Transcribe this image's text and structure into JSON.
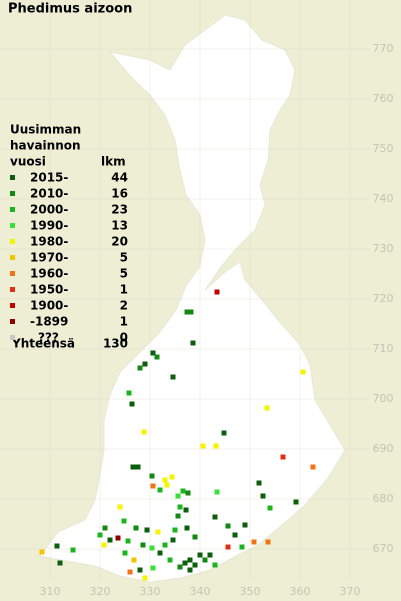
{
  "title": "Phedimus aizoon",
  "legend": {
    "heading": [
      "Uusimman",
      "havainnon",
      "vuosi"
    ],
    "count_heading": "lkm",
    "rows": [
      {
        "label": "2015-",
        "count": 44,
        "color": "#0b5e0b"
      },
      {
        "label": "2010-",
        "count": 16,
        "color": "#108a10"
      },
      {
        "label": "2000-",
        "count": 23,
        "color": "#1cb41c"
      },
      {
        "label": "1990-",
        "count": 13,
        "color": "#38e038"
      },
      {
        "label": "1980-",
        "count": 20,
        "color": "#f4f400"
      },
      {
        "label": "1970-",
        "count": 5,
        "color": "#f4c400"
      },
      {
        "label": "1960-",
        "count": 5,
        "color": "#f07414"
      },
      {
        "label": "1950-",
        "count": 1,
        "color": "#e42c14"
      },
      {
        "label": "1900-",
        "count": 2,
        "color": "#c40000"
      },
      {
        "label": "-1899",
        "count": 1,
        "color": "#8c0000"
      },
      {
        "label": "???",
        "count": 0,
        "color": "#c8c8c8"
      }
    ],
    "total_label": "Yhteensä",
    "total": 130
  },
  "xticks": [
    310,
    320,
    330,
    340,
    350,
    360,
    370
  ],
  "yticks": [
    670,
    680,
    690,
    700,
    710,
    720,
    730,
    740,
    750,
    760,
    770
  ],
  "points": [
    [
      343.4,
      721.4,
      8
    ],
    [
      337.4,
      717.4,
      1
    ],
    [
      338.2,
      717.4,
      1
    ],
    [
      338.6,
      711.2,
      0
    ],
    [
      330.6,
      709.2,
      0
    ],
    [
      331.4,
      708.4,
      1
    ],
    [
      329,
      707,
      0
    ],
    [
      328,
      706.2,
      1
    ],
    [
      334.6,
      704.4,
      0
    ],
    [
      360.6,
      705.4,
      4
    ],
    [
      325.8,
      701.2,
      2
    ],
    [
      326.4,
      699,
      0
    ],
    [
      353.4,
      698.2,
      4
    ],
    [
      344.8,
      693.2,
      0
    ],
    [
      328.8,
      693.4,
      4
    ],
    [
      340.6,
      690.6,
      4
    ],
    [
      343.2,
      690.6,
      4
    ],
    [
      356.6,
      688.4,
      7
    ],
    [
      362.6,
      686.4,
      6
    ],
    [
      326.6,
      686.4,
      0
    ],
    [
      327.6,
      686.4,
      0
    ],
    [
      330.4,
      684.6,
      1
    ],
    [
      330.6,
      682.6,
      6
    ],
    [
      333,
      683.8,
      4
    ],
    [
      334.4,
      684.4,
      4
    ],
    [
      333.4,
      682.8,
      4
    ],
    [
      332,
      681.8,
      2
    ],
    [
      336.6,
      681.6,
      2
    ],
    [
      337.6,
      681.2,
      1
    ],
    [
      335.6,
      680.6,
      3
    ],
    [
      343.4,
      681.4,
      3
    ],
    [
      324,
      678.4,
      4
    ],
    [
      324.8,
      675.6,
      2
    ],
    [
      336,
      678.4,
      2
    ],
    [
      337.2,
      677.8,
      0
    ],
    [
      335.6,
      676.6,
      1
    ],
    [
      351.8,
      683.2,
      0
    ],
    [
      352.6,
      680.6,
      0
    ],
    [
      359.2,
      679.4,
      0
    ],
    [
      354,
      678.2,
      2
    ],
    [
      321,
      674.2,
      1
    ],
    [
      320,
      672.8,
      2
    ],
    [
      320.8,
      670.8,
      4
    ],
    [
      322,
      671.8,
      0
    ],
    [
      323.6,
      672.2,
      9
    ],
    [
      325.6,
      671.6,
      2
    ],
    [
      327.2,
      674.2,
      1
    ],
    [
      329.4,
      673.8,
      0
    ],
    [
      331.6,
      673.4,
      4
    ],
    [
      333,
      670.8,
      2
    ],
    [
      334.6,
      671.8,
      0
    ],
    [
      332,
      669.2,
      0
    ],
    [
      330.4,
      670.2,
      3
    ],
    [
      328.6,
      670.8,
      1
    ],
    [
      326.8,
      667.8,
      5
    ],
    [
      325,
      669.2,
      2
    ],
    [
      335,
      673.8,
      2
    ],
    [
      337.4,
      674.2,
      0
    ],
    [
      339,
      672.4,
      1
    ],
    [
      343,
      676.4,
      0
    ],
    [
      345.6,
      674.6,
      1
    ],
    [
      347,
      672.8,
      0
    ],
    [
      349,
      674.8,
      0
    ],
    [
      348.4,
      670.4,
      2
    ],
    [
      345.6,
      670.4,
      7
    ],
    [
      350.8,
      671.4,
      6
    ],
    [
      353.6,
      671.4,
      6
    ],
    [
      308.4,
      669.4,
      5
    ],
    [
      311.4,
      670.6,
      0
    ],
    [
      314.6,
      669.8,
      2
    ],
    [
      312,
      667.2,
      0
    ],
    [
      337,
      667.2,
      0
    ],
    [
      338,
      667.8,
      0
    ],
    [
      339,
      666.8,
      0
    ],
    [
      340,
      668.8,
      0
    ],
    [
      341,
      667.8,
      1
    ],
    [
      342,
      668.8,
      0
    ],
    [
      343,
      666.8,
      2
    ],
    [
      338,
      665.8,
      0
    ],
    [
      336,
      666.4,
      1
    ],
    [
      334,
      667.8,
      2
    ],
    [
      328,
      665.8,
      0
    ],
    [
      329,
      664.2,
      4
    ],
    [
      326,
      665.4,
      6
    ],
    [
      330.6,
      666.2,
      3
    ]
  ]
}
